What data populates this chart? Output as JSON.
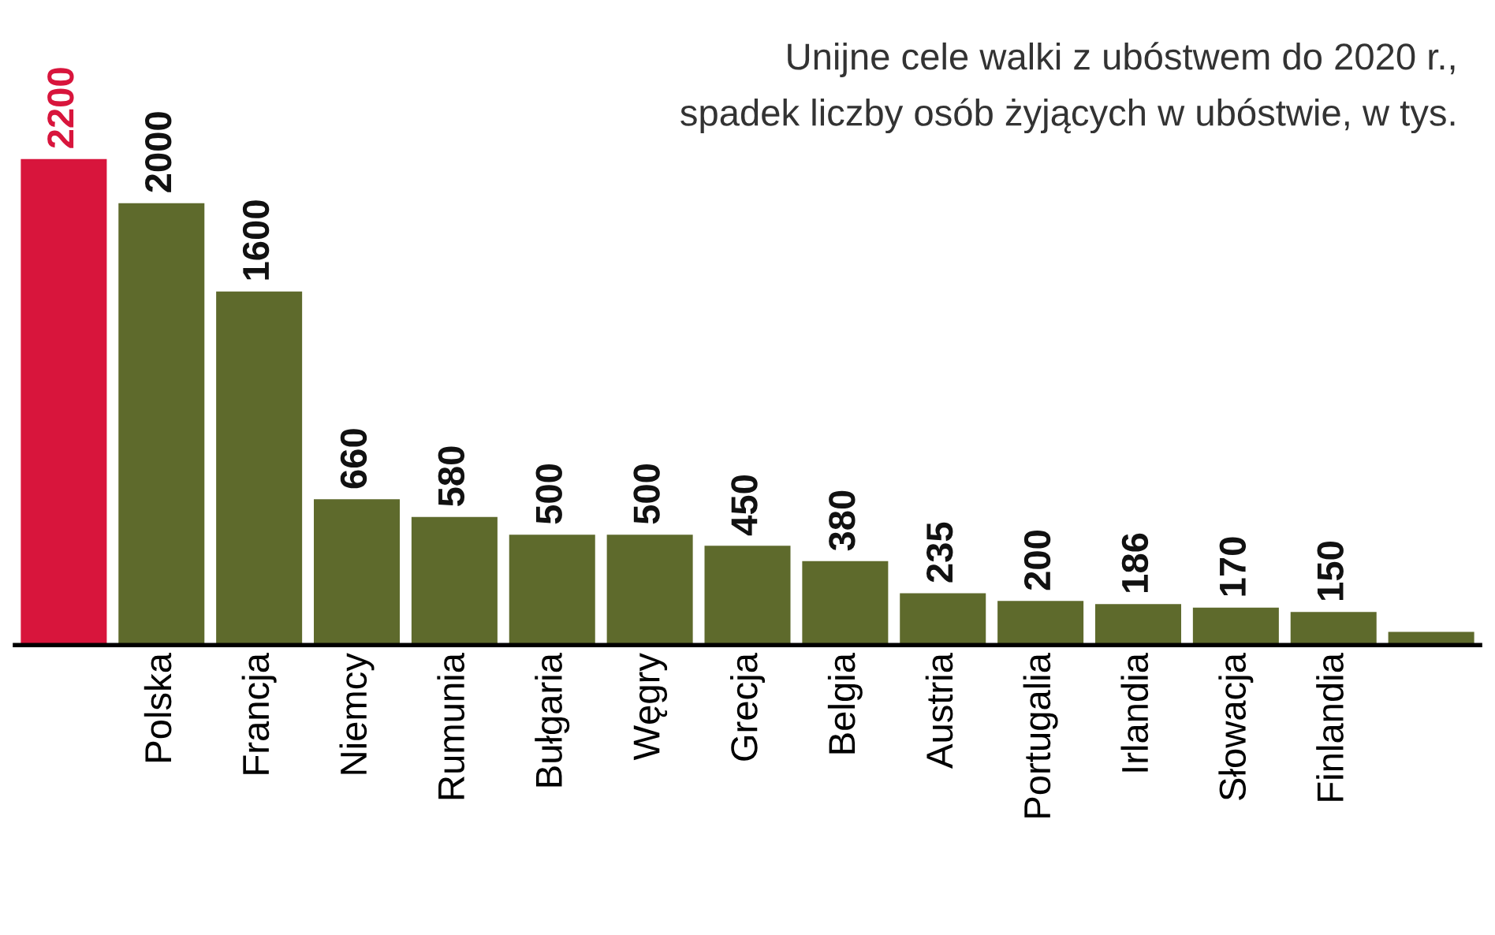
{
  "chart_data": {
    "type": "bar",
    "title": "Unijne cele walki z ubóstwem do 2020 r.,",
    "subtitle": "spadek liczby osób żyjących w ubóstwie, w tys.",
    "categories": [
      null,
      "Polska",
      "Francja",
      "Niemcy",
      "Rumunia",
      "Bułgaria",
      "Węgry",
      "Grecja",
      "Belgia",
      "Austria",
      "Portugalia",
      "Irlandia",
      "Słowacja",
      "Finlandia",
      null
    ],
    "values": [
      2200,
      2000,
      1600,
      660,
      580,
      500,
      500,
      450,
      380,
      235,
      200,
      186,
      170,
      150,
      60
    ],
    "value_labels": [
      "2200",
      "2000",
      "1600",
      "660",
      "580",
      "500",
      "500",
      "450",
      "380",
      "235",
      "200",
      "186",
      "170",
      "150",
      null
    ],
    "colors": [
      "#d8153c",
      "#5e6a2c",
      "#5e6a2c",
      "#5e6a2c",
      "#5e6a2c",
      "#5e6a2c",
      "#5e6a2c",
      "#5e6a2c",
      "#5e6a2c",
      "#5e6a2c",
      "#5e6a2c",
      "#5e6a2c",
      "#5e6a2c",
      "#5e6a2c",
      "#5e6a2c"
    ],
    "grid": false,
    "legend": false
  }
}
